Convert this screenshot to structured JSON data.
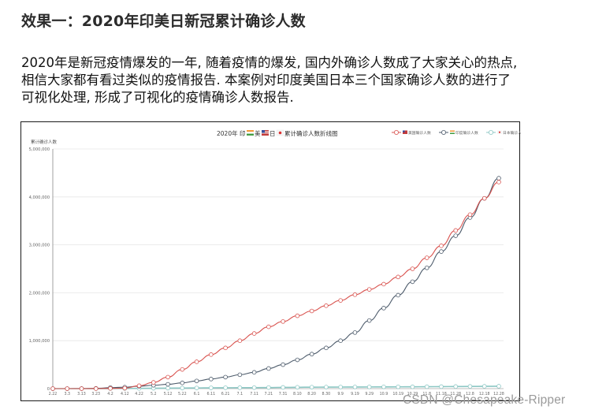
{
  "article": {
    "heading": "效果一：2020年印美日新冠累计确诊人数",
    "paragraph_lines": [
      "2020年是新冠疫情爆发的一年, 随着疫情的爆发, 国内外确诊人数成了大家关心的热点,",
      "相信大家都有看过类似的疫情报告. 本案例对印度美国日本三个国家确诊人数的进行了",
      "可视化处理, 形成了可视化的疫情确诊人数报告."
    ]
  },
  "watermark": "CSDN @Chesapeake-Ripper",
  "colors": {
    "us": "#d9534f",
    "india": "#4d5b6b",
    "japan": "#8cc7c4",
    "grid": "#e6e6e6",
    "axis": "#888888",
    "text": "#555555"
  },
  "chart_data": {
    "type": "line",
    "title": "2020年 印🇮🇳美🇺🇸日🇯🇵 累计确诊人数折线图",
    "title_parts": [
      "2020年 印",
      "美",
      "日",
      " 累计确诊人数折线图"
    ],
    "xlabel": "",
    "ylabel": "累计确诊人数",
    "ylim": [
      0,
      5000000
    ],
    "yticks": [
      0,
      1000000,
      2000000,
      3000000,
      4000000,
      5000000
    ],
    "ytick_labels": [
      "0",
      "1,000,000",
      "2,000,000",
      "3,000,000",
      "4,000,000",
      "5,000,000"
    ],
    "grid": true,
    "legend_position": "top-right",
    "categories": [
      "2.22",
      "3.3",
      "3.13",
      "3.23",
      "4.2",
      "4.12",
      "4.22",
      "5.2",
      "5.12",
      "5.22",
      "6.1",
      "6.11",
      "6.21",
      "7.1",
      "7.11",
      "7.21",
      "7.31",
      "8.10",
      "8.20",
      "8.30",
      "9.9",
      "9.19",
      "9.29",
      "10.9",
      "10.19",
      "10.29",
      "11.8",
      "11.18",
      "11.28",
      "12.8",
      "12.18",
      "12.28"
    ],
    "series": [
      {
        "name": "美国确诊人数",
        "flag": "us",
        "color": "#d9534f",
        "values": [
          0,
          0,
          0,
          1000,
          5000,
          10000,
          60000,
          130000,
          240000,
          400000,
          560000,
          710000,
          850000,
          1000000,
          1150000,
          1290000,
          1400000,
          1520000,
          1620000,
          1730000,
          1840000,
          1960000,
          2070000,
          2180000,
          2330000,
          2500000,
          2730000,
          2980000,
          3300000,
          3630000,
          3970000,
          4310000
        ]
      },
      {
        "name": "印度确诊人数",
        "flag": "india",
        "color": "#4d5b6b",
        "values": [
          0,
          0,
          1000,
          5000,
          20000,
          30000,
          50000,
          70000,
          90000,
          120000,
          160000,
          200000,
          240000,
          290000,
          340000,
          420000,
          500000,
          600000,
          720000,
          850000,
          1000000,
          1170000,
          1420000,
          1680000,
          1950000,
          2230000,
          2520000,
          2860000,
          3190000,
          3570000,
          3970000,
          4390000
        ]
      },
      {
        "name": "日本确诊人数",
        "flag": "japan",
        "color": "#8cc7c4",
        "values": [
          0,
          0,
          0,
          0,
          1000,
          3000,
          5000,
          8000,
          10000,
          12000,
          14000,
          16000,
          18000,
          19000,
          20000,
          22000,
          25000,
          28000,
          30000,
          32000,
          33000,
          34000,
          35000,
          36000,
          37000,
          38000,
          40000,
          42000,
          44000,
          46000,
          48000,
          50000
        ]
      }
    ]
  }
}
